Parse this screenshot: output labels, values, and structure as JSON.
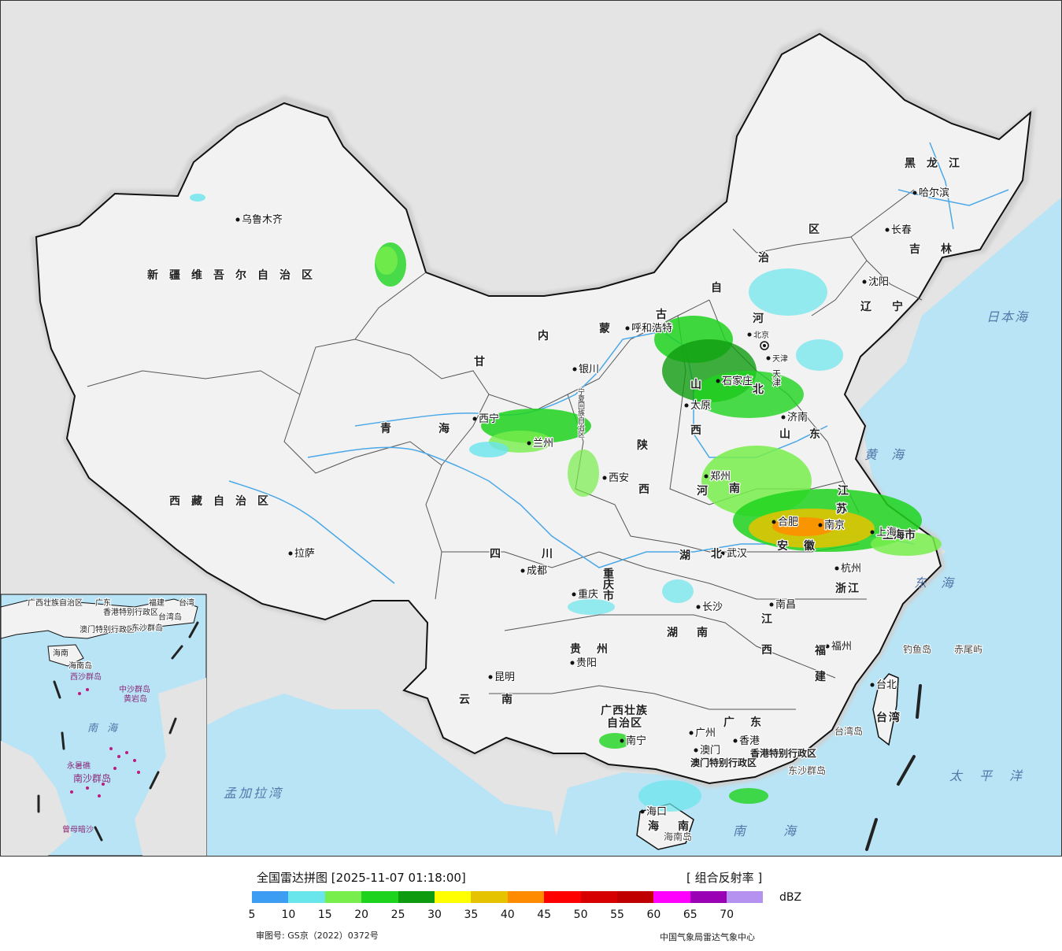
{
  "map": {
    "provinces": [
      {
        "id": "xinjiang",
        "label": "新疆维吾尔自治区"
      },
      {
        "id": "xizang",
        "label": "西藏自治区"
      },
      {
        "id": "qinghai",
        "label": "青海"
      },
      {
        "id": "gansu",
        "label": "甘"
      },
      {
        "id": "neimenggu-1",
        "label": "内"
      },
      {
        "id": "neimenggu-2",
        "label": "蒙"
      },
      {
        "id": "neimenggu-3",
        "label": "古"
      },
      {
        "id": "neimenggu-4",
        "label": "自"
      },
      {
        "id": "neimenggu-5",
        "label": "治"
      },
      {
        "id": "neimenggu-6",
        "label": "区"
      },
      {
        "id": "heilongjiang",
        "label": "黑龙江"
      },
      {
        "id": "jilin",
        "label": "吉林"
      },
      {
        "id": "liaoning",
        "label": "辽宁"
      },
      {
        "id": "hebei-1",
        "label": "河"
      },
      {
        "id": "hebei-2",
        "label": "北"
      },
      {
        "id": "shandong",
        "label": "山东"
      },
      {
        "id": "shanxi-1",
        "label": "山"
      },
      {
        "id": "shanxi-2",
        "label": "西"
      },
      {
        "id": "shaanxi-1",
        "label": "陕"
      },
      {
        "id": "shaanxi-2",
        "label": "西"
      },
      {
        "id": "ningxia",
        "label": "宁夏回族自治区"
      },
      {
        "id": "henan-1",
        "label": "河"
      },
      {
        "id": "henan-2",
        "label": "南"
      },
      {
        "id": "jiangsu-1",
        "label": "江"
      },
      {
        "id": "jiangsu-2",
        "label": "苏"
      },
      {
        "id": "anhui",
        "label": "安徽"
      },
      {
        "id": "sichuan",
        "label": "四川"
      },
      {
        "id": "chongqing",
        "label": "重庆市"
      },
      {
        "id": "hubei-1",
        "label": "湖"
      },
      {
        "id": "hubei-2",
        "label": "北"
      },
      {
        "id": "hunan",
        "label": "湖南"
      },
      {
        "id": "jiangxi-1",
        "label": "江"
      },
      {
        "id": "jiangxi-2",
        "label": "西"
      },
      {
        "id": "zhejiang",
        "label": "浙江"
      },
      {
        "id": "fujian-1",
        "label": "福"
      },
      {
        "id": "fujian-2",
        "label": "建"
      },
      {
        "id": "guizhou",
        "label": "贵州"
      },
      {
        "id": "yunnan",
        "label": "云南"
      },
      {
        "id": "guangxi-1",
        "label": "广西壮族"
      },
      {
        "id": "guangxi-2",
        "label": "自治区"
      },
      {
        "id": "guangdong",
        "label": "广东"
      },
      {
        "id": "hainan",
        "label": "海南"
      },
      {
        "id": "taiwan",
        "label": "台湾"
      },
      {
        "id": "shanghai",
        "label": "上海市"
      },
      {
        "id": "tianjin",
        "label": "天津"
      },
      {
        "id": "hk",
        "label": "香港特别行政区"
      },
      {
        "id": "macau",
        "label": "澳门特别行政区"
      }
    ],
    "cities": [
      {
        "id": "wulumuqi",
        "label": "乌鲁木齐"
      },
      {
        "id": "lasa",
        "label": "拉萨"
      },
      {
        "id": "xining",
        "label": "西宁"
      },
      {
        "id": "lanzhou",
        "label": "兰州"
      },
      {
        "id": "yinchuan",
        "label": "银川"
      },
      {
        "id": "huhehaote",
        "label": "呼和浩特"
      },
      {
        "id": "beijing",
        "label": "北京"
      },
      {
        "id": "tianjin-city",
        "label": "天津"
      },
      {
        "id": "shijiazhuang",
        "label": "石家庄"
      },
      {
        "id": "taiyuan",
        "label": "太原"
      },
      {
        "id": "jinan",
        "label": "济南"
      },
      {
        "id": "zhengzhou",
        "label": "郑州"
      },
      {
        "id": "xian",
        "label": "西安"
      },
      {
        "id": "hefei",
        "label": "合肥"
      },
      {
        "id": "nanjing",
        "label": "南京"
      },
      {
        "id": "shanghai-city",
        "label": "上海"
      },
      {
        "id": "hangzhou",
        "label": "杭州"
      },
      {
        "id": "wuhan",
        "label": "武汉"
      },
      {
        "id": "chengdu",
        "label": "成都"
      },
      {
        "id": "chongqing-city",
        "label": "重庆"
      },
      {
        "id": "changsha",
        "label": "长沙"
      },
      {
        "id": "nanchang",
        "label": "南昌"
      },
      {
        "id": "fuzhou",
        "label": "福州"
      },
      {
        "id": "guiyang",
        "label": "贵阳"
      },
      {
        "id": "kunming",
        "label": "昆明"
      },
      {
        "id": "nanning",
        "label": "南宁"
      },
      {
        "id": "guangzhou",
        "label": "广州"
      },
      {
        "id": "xianggang",
        "label": "香港"
      },
      {
        "id": "aomen",
        "label": "澳门"
      },
      {
        "id": "haikou",
        "label": "海口"
      },
      {
        "id": "taibei",
        "label": "台北"
      },
      {
        "id": "haerbin",
        "label": "哈尔滨"
      },
      {
        "id": "changchun",
        "label": "长春"
      },
      {
        "id": "shenyang",
        "label": "沈阳"
      }
    ],
    "seas": [
      {
        "id": "riben-hai",
        "label": "日本海"
      },
      {
        "id": "huang-hai",
        "label": "黄海"
      },
      {
        "id": "dong-hai",
        "label": "东海"
      },
      {
        "id": "taipingyang",
        "label": "太平洋"
      },
      {
        "id": "nan-hai",
        "label": "南海"
      },
      {
        "id": "mengjiala-wan",
        "label": "孟加拉湾"
      }
    ],
    "islands": [
      {
        "id": "diaoyudao",
        "label": "钓鱼岛"
      },
      {
        "id": "chiweiyu",
        "label": "赤尾屿"
      },
      {
        "id": "taiwan-dao",
        "label": "台湾岛"
      },
      {
        "id": "dongsha",
        "label": "东沙群岛"
      },
      {
        "id": "hainan-dao",
        "label": "海南岛"
      }
    ],
    "inset": {
      "labels": [
        "广西壮族自治区",
        "广东",
        "福建",
        "台湾",
        "海南",
        "香港特别行政区",
        "澳门特别行政区",
        "台湾岛",
        "东沙群岛",
        "海南岛",
        "西沙群岛",
        "中沙群岛",
        "黄岩岛",
        "南海",
        "永暑礁",
        "南沙群岛",
        "曾母暗沙"
      ]
    },
    "colors": {
      "sea": "#b8e4f5",
      "land": "#f2f2f2",
      "foreign": "#e4e4e4",
      "border": "#111111",
      "river": "#4aa8e8"
    }
  },
  "footer": {
    "title": "全国雷达拼图 [2025-11-07 01:18:00]",
    "product": "[ 组合反射率 ]",
    "unit": "dBZ",
    "approval": "审图号: GS京（2022）0372号",
    "credit": "中国气象局雷达气象中心"
  },
  "legend": {
    "colors": [
      "#3d9df2",
      "#69e5ec",
      "#78ee4c",
      "#1ed31e",
      "#0f9b0f",
      "#ffff00",
      "#e6c300",
      "#ff8c00",
      "#ff0000",
      "#d60000",
      "#c00000",
      "#ff00ff",
      "#9a00b4",
      "#b592f0"
    ],
    "ticks": [
      "5",
      "10",
      "15",
      "20",
      "25",
      "30",
      "35",
      "40",
      "45",
      "50",
      "55",
      "60",
      "65",
      "70"
    ]
  }
}
